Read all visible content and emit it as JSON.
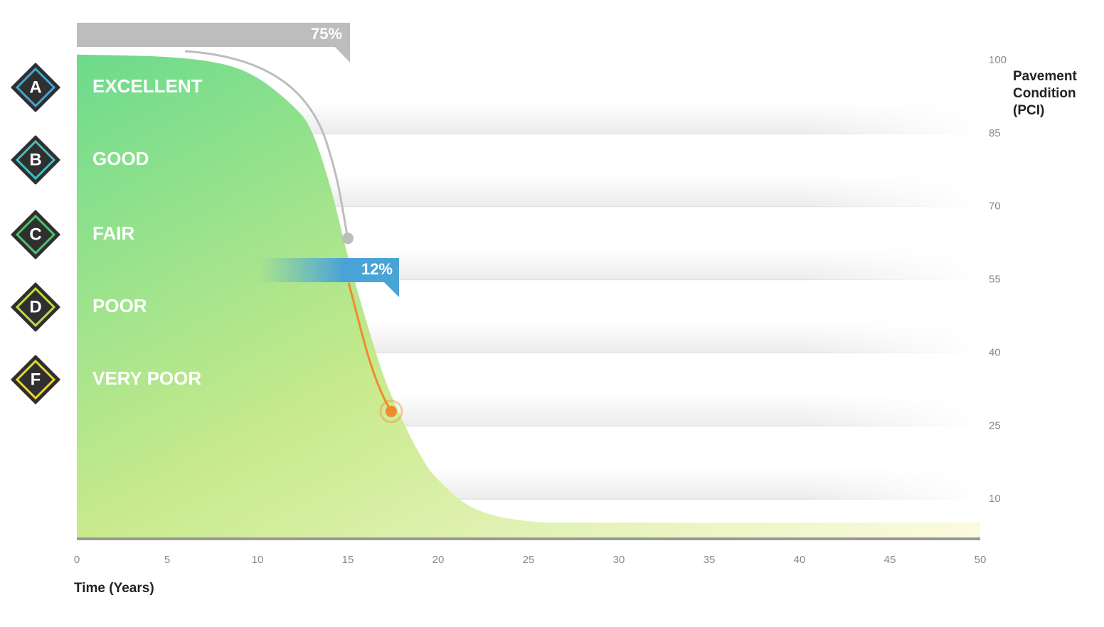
{
  "chart_data": {
    "type": "area",
    "color": "#6cdb8c",
    "x_label": "Time (Years)",
    "y_label": "Pavement Condition (PCI)",
    "x": [
      0,
      5,
      8,
      10,
      12,
      13,
      14,
      15,
      16,
      17,
      18,
      19,
      20,
      22,
      25,
      30,
      50
    ],
    "values": [
      101.2,
      100.7,
      99.3,
      96.4,
      90.5,
      85.4,
      74.5,
      59.9,
      46.8,
      35.1,
      26.4,
      19.1,
      14,
      8.1,
      5.5,
      5.2,
      5.2
    ],
    "xlim": [
      0,
      50
    ],
    "xticks": [
      0,
      5,
      10,
      15,
      20,
      25,
      30,
      35,
      40,
      45,
      50
    ],
    "ylim": [
      2,
      100
    ],
    "yticks": [
      10,
      25,
      40,
      55,
      70,
      85,
      100
    ],
    "grid": true,
    "ratings": [
      {
        "grade": "A",
        "label": "EXCELLENT",
        "color": "#3fa6d6"
      },
      {
        "grade": "B",
        "label": "GOOD",
        "color": "#3fc0c0"
      },
      {
        "grade": "C",
        "label": "FAIR",
        "color": "#4cc36a"
      },
      {
        "grade": "D",
        "label": "POOR",
        "color": "#c6d83a"
      },
      {
        "grade": "F",
        "label": "VERY POOR",
        "color": "#e8d62c"
      }
    ],
    "markers": [
      {
        "label": "75%",
        "x": 15,
        "y": 63.5,
        "color": "#bdbdbd"
      },
      {
        "label": "12%",
        "x": 17.4,
        "y": 28,
        "color": "#f08a2c"
      }
    ]
  }
}
